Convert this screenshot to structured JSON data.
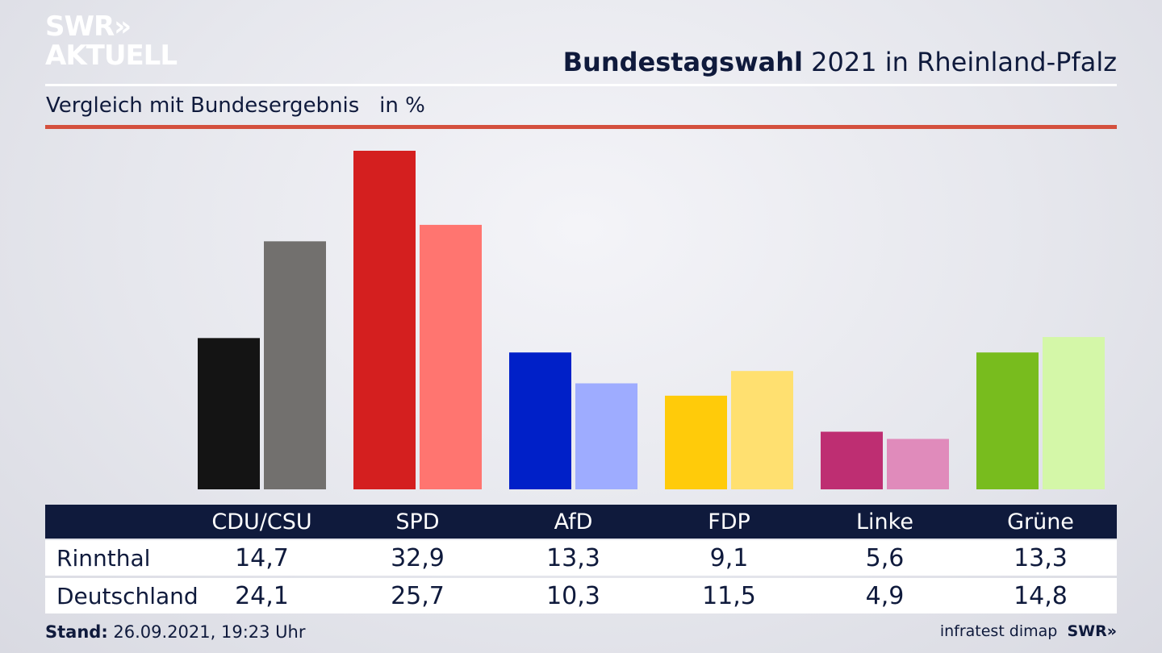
{
  "logo": {
    "line1": "SWR»",
    "line2": "AKTUELL"
  },
  "header": {
    "title_bold": "Bundestagswahl",
    "title_rest": " 2021 in Rheinland-Pfalz"
  },
  "subtitle": "Vergleich mit Bundesergebnis   in %",
  "footer": {
    "stand_label": "Stand:",
    "stand_value": " 26.09.2021, 19:23 Uhr",
    "source": "infratest dimap",
    "source_brand": "SWR»"
  },
  "colors": {
    "CDU/CSU": [
      "#141414",
      "#72706e"
    ],
    "SPD": [
      "#d41f1f",
      "#ff7570"
    ],
    "AfD": [
      "#0020c8",
      "#9eacff"
    ],
    "FDP": [
      "#ffcb0a",
      "#ffe070"
    ],
    "Linke": [
      "#be2e72",
      "#e08bbb"
    ],
    "Grüne": [
      "#78bc1e",
      "#d4f7a8"
    ]
  },
  "chart_data": {
    "type": "bar",
    "title": "Bundestagswahl 2021 in Rheinland-Pfalz",
    "subtitle": "Vergleich mit Bundesergebnis   in %",
    "categories": [
      "CDU/CSU",
      "SPD",
      "AfD",
      "FDP",
      "Linke",
      "Grüne"
    ],
    "series": [
      {
        "name": "Rinnthal",
        "values": [
          14.7,
          32.9,
          13.3,
          9.1,
          5.6,
          13.3
        ],
        "labels": [
          "14,7",
          "32,9",
          "13,3",
          "9,1",
          "5,6",
          "13,3"
        ]
      },
      {
        "name": "Deutschland",
        "values": [
          24.1,
          25.7,
          10.3,
          11.5,
          4.9,
          14.8
        ],
        "labels": [
          "24,1",
          "25,7",
          "10,3",
          "11,5",
          "4,9",
          "14,8"
        ]
      }
    ],
    "ylim": [
      0,
      32.9
    ]
  }
}
